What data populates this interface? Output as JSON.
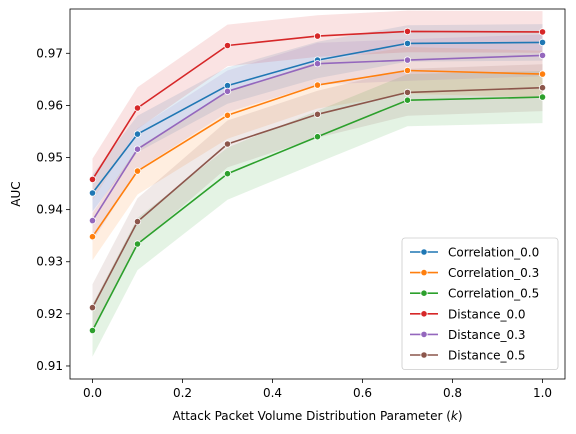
{
  "chart_data": {
    "type": "line",
    "title": "",
    "xlabel_main": "Attack Packet Volume Distribution Parameter (",
    "xlabel_var": "k",
    "xlabel_end": ")",
    "ylabel": "AUC",
    "xlim": [
      -0.05,
      1.05
    ],
    "ylim": [
      0.9075,
      0.9785
    ],
    "xticks": [
      0.0,
      0.2,
      0.4,
      0.6,
      0.8,
      1.0
    ],
    "xtick_labels": [
      "0.0",
      "0.2",
      "0.4",
      "0.6",
      "0.8",
      "1.0"
    ],
    "yticks": [
      0.91,
      0.92,
      0.93,
      0.94,
      0.95,
      0.96,
      0.97
    ],
    "ytick_labels": [
      "0.91",
      "0.92",
      "0.93",
      "0.94",
      "0.95",
      "0.96",
      "0.97"
    ],
    "grid": false,
    "legend_position": "lower right",
    "x": [
      0.0,
      0.1,
      0.3,
      0.5,
      0.7,
      1.0
    ],
    "series": [
      {
        "name": "Correlation_0.0",
        "color": "#1f77b4",
        "values": [
          0.9432,
          0.9545,
          0.9638,
          0.9687,
          0.9719,
          0.9721
        ],
        "ci": 0.0035
      },
      {
        "name": "Correlation_0.3",
        "color": "#ff7f0e",
        "values": [
          0.9348,
          0.9474,
          0.9581,
          0.9639,
          0.9667,
          0.966
        ],
        "ci": 0.0045
      },
      {
        "name": "Correlation_0.5",
        "color": "#2ca02c",
        "values": [
          0.9168,
          0.9334,
          0.9469,
          0.954,
          0.961,
          0.9616
        ],
        "ci": 0.005
      },
      {
        "name": "Distance_0.0",
        "color": "#d62728",
        "values": [
          0.9458,
          0.9595,
          0.9715,
          0.9733,
          0.9742,
          0.9741
        ],
        "ci": 0.004
      },
      {
        "name": "Distance_0.3",
        "color": "#9467bd",
        "values": [
          0.9379,
          0.9516,
          0.9627,
          0.968,
          0.9687,
          0.9696
        ],
        "ci": 0.004
      },
      {
        "name": "Distance_0.5",
        "color": "#8c564b",
        "values": [
          0.9212,
          0.9377,
          0.9526,
          0.9583,
          0.9625,
          0.9634
        ],
        "ci": 0.0045
      }
    ]
  }
}
